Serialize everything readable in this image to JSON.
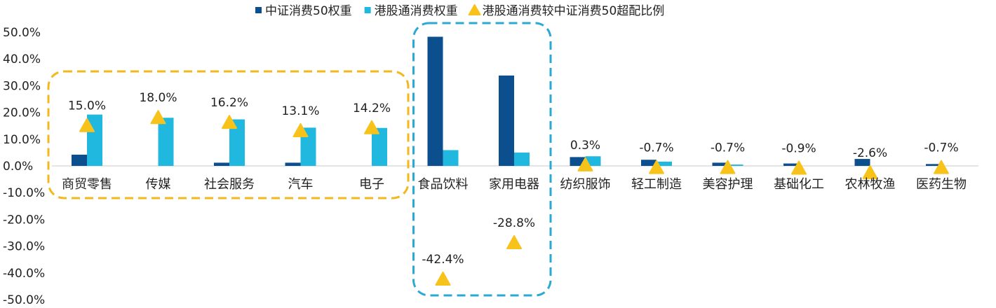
{
  "chart_data": {
    "type": "bar",
    "title": "",
    "xlabel": "",
    "ylabel": "",
    "ylim": [
      -50,
      50
    ],
    "ytick_step": 10,
    "ytick_labels": [
      "50.0%",
      "40.0%",
      "30.0%",
      "20.0%",
      "10.0%",
      "0.0%",
      "-10.0%",
      "-20.0%",
      "-30.0%",
      "-40.0%",
      "-50.0%"
    ],
    "grid": false,
    "legend_position": "top",
    "categories": [
      "商贸零售",
      "传媒",
      "社会服务",
      "汽车",
      "电子",
      "食品饮料",
      "家用电器",
      "纺织服饰",
      "轻工制造",
      "美容护理",
      "基础化工",
      "农林牧渔",
      "医药生物"
    ],
    "series": [
      {
        "name": "中证消费50权重",
        "kind": "bar",
        "color": "#0b4f8f",
        "values": [
          4.2,
          0,
          1.2,
          1.2,
          0,
          48.3,
          33.8,
          3.3,
          2.3,
          1.2,
          0.9,
          2.6,
          0.7
        ]
      },
      {
        "name": "港股通消费权重",
        "kind": "bar",
        "color": "#21b8e0",
        "values": [
          19.2,
          18.0,
          17.4,
          14.3,
          14.2,
          5.9,
          5.0,
          3.6,
          1.6,
          0.5,
          0,
          0,
          0
        ]
      },
      {
        "name": "港股通消费较中证消费50超配比例",
        "kind": "marker",
        "color": "#f7c31b",
        "values": [
          15.0,
          18.0,
          16.2,
          13.1,
          14.2,
          -42.4,
          -28.8,
          0.3,
          -0.7,
          -0.7,
          -0.9,
          -2.6,
          -0.7
        ],
        "labels": [
          "15.0%",
          "18.0%",
          "16.2%",
          "13.1%",
          "14.2%",
          "-42.4%",
          "-28.8%",
          "0.3%",
          "-0.7%",
          "-0.7%",
          "-0.9%",
          "-2.6%",
          "-0.7%"
        ]
      }
    ],
    "highlight_groups": [
      {
        "color": "#f2b81c",
        "categories": [
          "商贸零售",
          "传媒",
          "社会服务",
          "汽车",
          "电子"
        ]
      },
      {
        "color": "#29a9d3",
        "categories": [
          "食品饮料",
          "家用电器"
        ]
      }
    ]
  }
}
